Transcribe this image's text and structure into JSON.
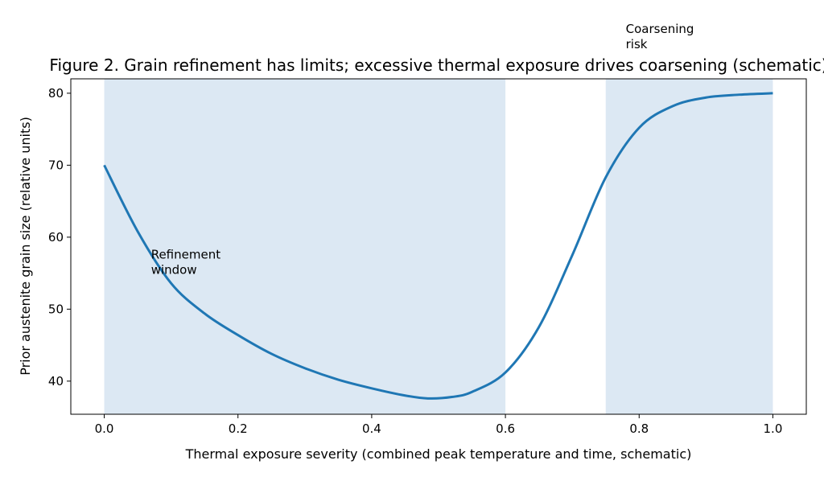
{
  "chart_data": {
    "type": "line",
    "title": "Figure 2. Grain refinement has limits; excessive thermal exposure drives coarsening (schematic)",
    "xlabel": "Thermal exposure severity (combined peak temperature and time, schematic)",
    "ylabel": "Prior austenite grain size (relative units)",
    "xlim": [
      -0.05,
      1.05
    ],
    "ylim": [
      35.4,
      82.0
    ],
    "xticks": [
      0.0,
      0.2,
      0.4,
      0.6,
      0.8,
      1.0
    ],
    "xtick_labels": [
      "0.0",
      "0.2",
      "0.4",
      "0.6",
      "0.8",
      "1.0"
    ],
    "yticks": [
      40,
      50,
      60,
      70,
      80
    ],
    "ytick_labels": [
      "40",
      "50",
      "60",
      "70",
      "80"
    ],
    "grid": false,
    "series": [
      {
        "color": "#1f77b4",
        "x": [
          0.0,
          0.05,
          0.1,
          0.15,
          0.2,
          0.25,
          0.3,
          0.35,
          0.4,
          0.45,
          0.484,
          0.52,
          0.55,
          0.6,
          0.65,
          0.7,
          0.75,
          0.8,
          0.85,
          0.9,
          0.95,
          1.0
        ],
        "y": [
          70.0,
          60.8,
          53.6,
          49.4,
          46.4,
          43.8,
          41.8,
          40.2,
          39.0,
          38.0,
          37.6,
          37.8,
          38.5,
          41.2,
          47.5,
          57.5,
          68.3,
          75.2,
          78.2,
          79.4,
          79.8,
          80.0
        ]
      }
    ],
    "shaded_regions": [
      {
        "x": [
          0.0,
          0.6
        ],
        "color": "#dce8f3"
      },
      {
        "x": [
          0.75,
          1.0
        ],
        "color": "#dce8f3"
      }
    ],
    "annotations": [
      {
        "lines": [
          "Refinement",
          "window"
        ],
        "x": 0.07,
        "y": 57
      },
      {
        "lines": [
          "Coarsening",
          "risk"
        ],
        "x": 0.78,
        "y": 84
      }
    ]
  }
}
